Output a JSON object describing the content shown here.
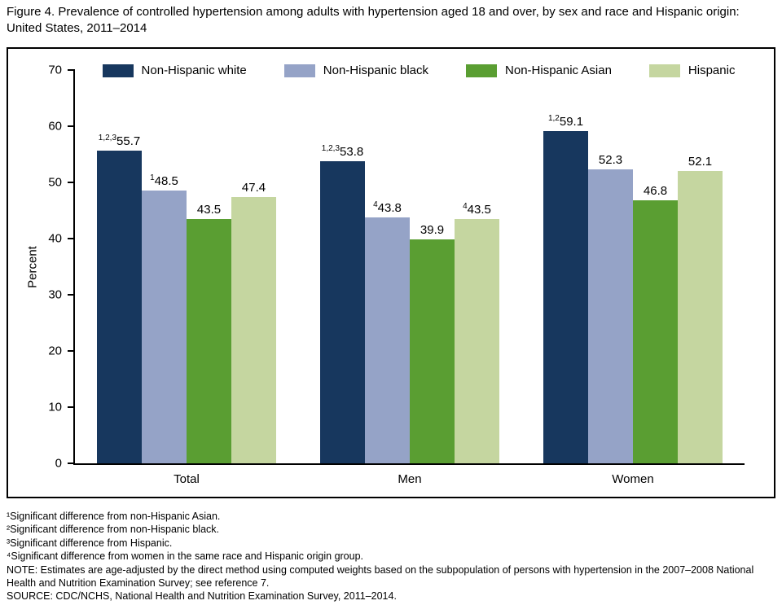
{
  "title": "Figure 4. Prevalence of controlled hypertension among adults with hypertension aged 18 and over, by sex and race and Hispanic origin: United States, 2011–2014",
  "chart_data": {
    "type": "bar",
    "categories": [
      "Total",
      "Men",
      "Women"
    ],
    "series": [
      {
        "name": "Non-Hispanic white",
        "color": "#17375e",
        "values": [
          55.7,
          53.8,
          59.1
        ],
        "superscripts": [
          "1,2,3",
          "1,2,3",
          "1,2"
        ]
      },
      {
        "name": "Non-Hispanic black",
        "color": "#95a3c7",
        "values": [
          48.5,
          43.8,
          52.3
        ],
        "superscripts": [
          "1",
          "4",
          ""
        ]
      },
      {
        "name": "Non-Hispanic Asian",
        "color": "#5a9e32",
        "values": [
          43.5,
          39.9,
          46.8
        ],
        "superscripts": [
          "",
          "",
          ""
        ]
      },
      {
        "name": "Hispanic",
        "color": "#c5d6a0",
        "values": [
          47.4,
          43.5,
          52.1
        ],
        "superscripts": [
          "",
          "4",
          ""
        ]
      }
    ],
    "title": "",
    "xlabel": "",
    "ylabel": "Percent",
    "ylim": [
      0,
      70
    ],
    "yticks": [
      0,
      10,
      20,
      30,
      40,
      50,
      60,
      70
    ],
    "grid": false,
    "legend_position": "top"
  },
  "footnotes": [
    "¹Significant difference from non-Hispanic Asian.",
    "²Significant difference from non-Hispanic black.",
    "³Significant difference from Hispanic.",
    "⁴Significant difference from women in the same race and Hispanic origin group.",
    "NOTE: Estimates are age-adjusted by the direct method using computed weights based on the subpopulation of persons with hypertension in the 2007–2008 National Health and Nutrition Examination Survey; see reference 7.",
    "SOURCE: CDC/NCHS, National Health and Nutrition Examination Survey, 2011–2014."
  ]
}
